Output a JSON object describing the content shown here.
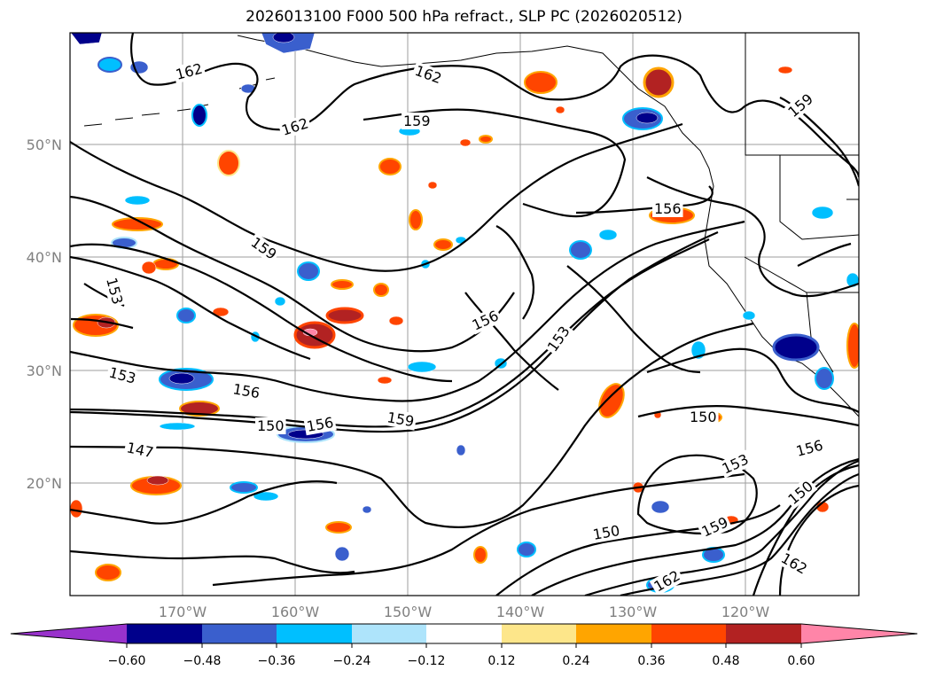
{
  "title": "2026013100 F000 500 hPa refract., SLP PC (2026020512)",
  "map": {
    "lat_labels": [
      "50°N",
      "40°N",
      "30°N",
      "20°N"
    ],
    "lon_labels": [
      "170°W",
      "160°W",
      "150°W",
      "140°W",
      "130°W",
      "120°W"
    ],
    "contour_labels": [
      "162",
      "162",
      "162",
      "159",
      "159",
      "159",
      "159",
      "156",
      "156",
      "156",
      "156",
      "156",
      "153",
      "153",
      "153",
      "153",
      "150",
      "150",
      "150",
      "150",
      "147",
      "159",
      "162",
      "162"
    ]
  },
  "colorbar": {
    "tick_labels": [
      "−0.60",
      "−0.48",
      "−0.36",
      "−0.24",
      "−0.12",
      "0.12",
      "0.24",
      "0.36",
      "0.48",
      "0.60"
    ],
    "colors": [
      "#9932cc",
      "#00008b",
      "#3a5fcd",
      "#00bfff",
      "#aee4fb",
      "#ffffff",
      "#fde68a",
      "#ffa500",
      "#ff4500",
      "#b22222",
      "#ff85a8"
    ]
  }
}
